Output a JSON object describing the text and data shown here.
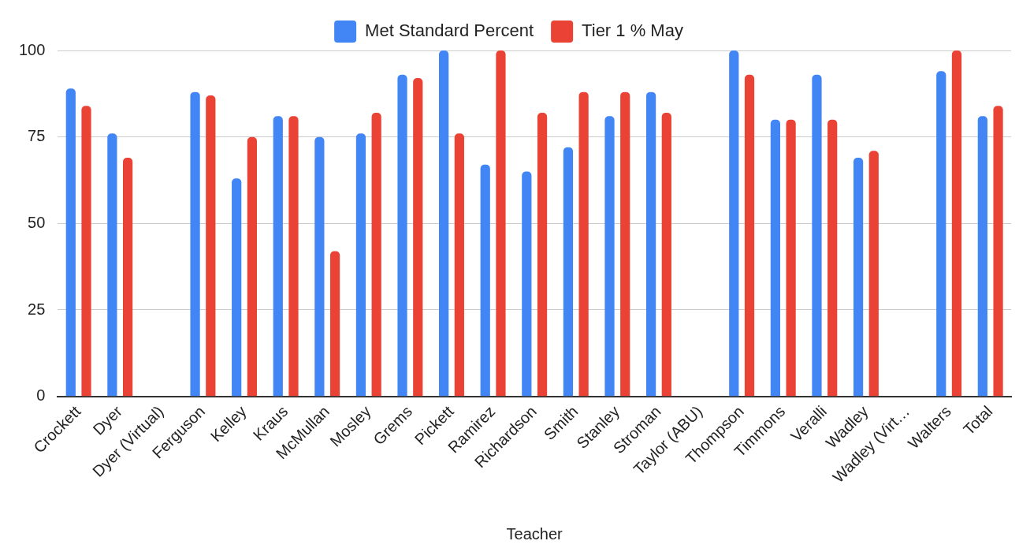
{
  "chart_data": {
    "type": "bar",
    "xlabel": "Teacher",
    "categories": [
      "Crockett",
      "Dyer",
      "Dyer (Virtual)",
      "Ferguson",
      "Kelley",
      "Kraus",
      "McMullan",
      "Mosley",
      "Grems",
      "Pickett",
      "Ramirez",
      "Richardson",
      "Smith",
      "Stanley",
      "Stroman",
      "Taylor (ABU)",
      "Thompson",
      "Timmons",
      "Veralli",
      "Wadley",
      "Wadley (Virt…",
      "Walters",
      "Total"
    ],
    "series": [
      {
        "name": "Met Standard Percent",
        "color": "#4285f4",
        "values": [
          89,
          76,
          null,
          88,
          63,
          81,
          75,
          76,
          93,
          100,
          67,
          65,
          72,
          81,
          88,
          null,
          100,
          80,
          93,
          69,
          null,
          94,
          81
        ]
      },
      {
        "name": "Tier 1 % May",
        "color": "#ea4335",
        "values": [
          84,
          69,
          null,
          87,
          75,
          81,
          42,
          82,
          92,
          76,
          100,
          82,
          88,
          88,
          82,
          null,
          93,
          80,
          80,
          71,
          null,
          100,
          84
        ]
      }
    ],
    "ylim": [
      0,
      100
    ],
    "yticks": [
      0,
      25,
      50,
      75,
      100
    ],
    "grid": "y",
    "legend": "top"
  }
}
